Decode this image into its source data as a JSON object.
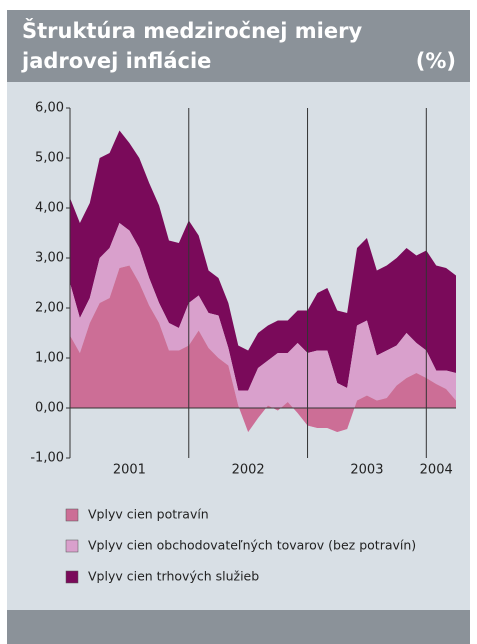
{
  "chart_data": {
    "type": "stacked_area",
    "title": [
      "Štruktúra medziročnej miery",
      "jadrovej inflácie"
    ],
    "unit": "(%)",
    "categories": [
      null,
      null,
      null,
      null,
      null,
      null,
      "2001",
      null,
      null,
      null,
      null,
      null,
      null,
      null,
      null,
      null,
      null,
      null,
      "2002",
      null,
      null,
      null,
      null,
      null,
      null,
      null,
      null,
      null,
      null,
      null,
      "2003",
      null,
      null,
      null,
      null,
      null,
      null,
      "2004",
      null,
      null
    ],
    "series": [
      {
        "name": "Vplyv cien potravín",
        "color": "#cc6e96",
        "values": [
          1.45,
          1.1,
          1.7,
          2.1,
          2.2,
          2.8,
          2.85,
          2.5,
          2.05,
          1.7,
          1.15,
          1.15,
          1.25,
          1.55,
          1.2,
          1.0,
          0.85,
          0.05,
          -0.48,
          -0.2,
          0.05,
          -0.05,
          0.12,
          -0.1,
          -0.35,
          -0.4,
          -0.4,
          -0.48,
          -0.42,
          0.15,
          0.25,
          0.15,
          0.2,
          0.45,
          0.6,
          0.7,
          0.6,
          0.48,
          0.38,
          0.15
        ]
      },
      {
        "name": "Vplyv cien obchodovateľných tovarov (bez potravín)",
        "color": "#d9a0cc",
        "values": [
          1.05,
          0.7,
          0.5,
          0.9,
          1.0,
          0.9,
          0.7,
          0.7,
          0.55,
          0.4,
          0.55,
          0.45,
          0.85,
          0.7,
          0.7,
          0.85,
          0.35,
          0.3,
          0.83,
          1.0,
          0.9,
          1.15,
          0.98,
          1.4,
          1.45,
          1.55,
          1.55,
          0.98,
          0.82,
          1.5,
          1.5,
          0.9,
          0.95,
          0.8,
          0.9,
          0.6,
          0.55,
          0.27,
          0.37,
          0.55
        ]
      },
      {
        "name": "Vplyv cien trhových služieb",
        "color": "#7a0a5a",
        "values": [
          1.7,
          1.9,
          1.9,
          2.0,
          1.9,
          1.85,
          1.75,
          1.8,
          1.9,
          1.95,
          1.65,
          1.7,
          1.65,
          1.2,
          0.85,
          0.75,
          0.9,
          0.9,
          0.8,
          0.7,
          0.7,
          0.65,
          0.65,
          0.65,
          0.85,
          1.15,
          1.25,
          1.45,
          1.5,
          1.55,
          1.65,
          1.7,
          1.7,
          1.75,
          1.7,
          1.75,
          2.0,
          2.1,
          2.05,
          1.95
        ]
      }
    ],
    "ylim": [
      -1,
      6
    ],
    "yticks": [
      {
        "value": -1,
        "label": "-1,00"
      },
      {
        "value": 0,
        "label": "0,00"
      },
      {
        "value": 1,
        "label": "1,00"
      },
      {
        "value": 2,
        "label": "2,00"
      },
      {
        "value": 3,
        "label": "3,00"
      },
      {
        "value": 4,
        "label": "4,00"
      },
      {
        "value": 5,
        "label": "5,00"
      },
      {
        "value": 6,
        "label": "6,00"
      }
    ]
  }
}
